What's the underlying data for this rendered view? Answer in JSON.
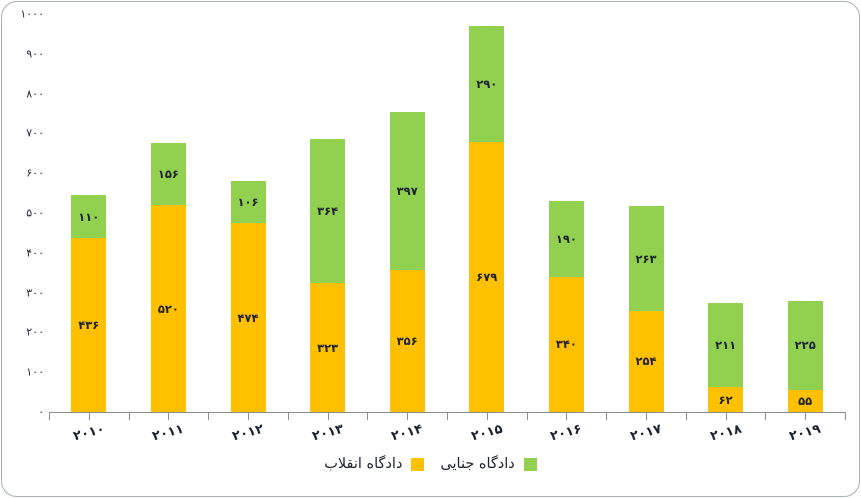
{
  "chart_data": {
    "type": "bar",
    "stacked": true,
    "direction": "rtl",
    "title": "",
    "xlabel": "",
    "ylabel": "",
    "categories": [
      2010,
      2011,
      2012,
      2013,
      2014,
      2015,
      2016,
      2017,
      2018,
      2019
    ],
    "categories_display": [
      "۲۰۱۰",
      "۲۰۱۱",
      "۲۰۱۲",
      "۲۰۱۳",
      "۲۰۱۴",
      "۲۰۱۵",
      "۲۰۱۶",
      "۲۰۱۷",
      "۲۰۱۸",
      "۲۰۱۹"
    ],
    "series": [
      {
        "name": "دادگاه انقلاب",
        "color": "#FFC000",
        "values": [
          436,
          520,
          474,
          323,
          356,
          679,
          340,
          254,
          62,
          55
        ],
        "value_labels": [
          "۴۳۶",
          "۵۲۰",
          "۴۷۴",
          "۳۲۳",
          "۳۵۶",
          "۶۷۹",
          "۳۴۰",
          "۲۵۴",
          "۶۲",
          "۵۵"
        ]
      },
      {
        "name": "دادگاه جنایی",
        "color": "#92D050",
        "values": [
          110,
          156,
          106,
          364,
          397,
          290,
          190,
          263,
          211,
          225
        ],
        "value_labels": [
          "۱۱۰",
          "۱۵۶",
          "۱۰۶",
          "۳۶۴",
          "۳۹۷",
          "۲۹۰",
          "۱۹۰",
          "۲۶۳",
          "۲۱۱",
          "۲۲۵"
        ]
      }
    ],
    "totals": [
      546,
      676,
      580,
      687,
      753,
      969,
      530,
      517,
      273,
      280
    ],
    "ylim": [
      0,
      1000
    ],
    "yticks": [
      0,
      100,
      200,
      300,
      400,
      500,
      600,
      700,
      800,
      900,
      1000
    ],
    "ytick_labels": [
      "۰",
      "۱۰۰",
      "۲۰۰",
      "۳۰۰",
      "۴۰۰",
      "۵۰۰",
      "۶۰۰",
      "۷۰۰",
      "۸۰۰",
      "۹۰۰",
      "۱۰۰۰"
    ],
    "grid": false,
    "legend_position": "bottom-center"
  },
  "legend": {
    "items": [
      {
        "label": "دادگاه انقلاب",
        "color": "#FFC000"
      },
      {
        "label": "دادگاه جنایی",
        "color": "#92D050"
      }
    ]
  },
  "colors": {
    "bar_yellow": "#FFC000",
    "bar_green": "#92D050",
    "axis": "#8C8C8C",
    "label_text": "#1E2230",
    "border": "#A9B0B7",
    "background": "#FFFFFF"
  }
}
